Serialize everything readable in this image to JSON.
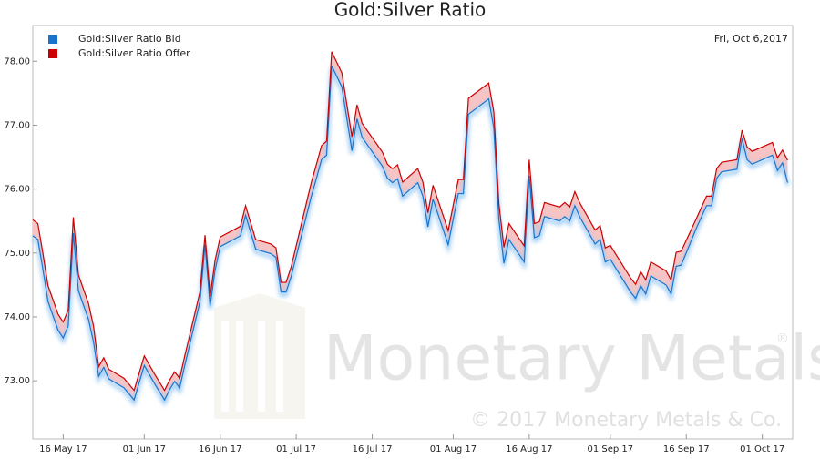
{
  "chart_data": {
    "type": "line",
    "title": "Gold:Silver Ratio",
    "date_label": "Fri, Oct 6,2017",
    "watermark": "Monetary Metals",
    "watermark_mark": "®",
    "copyright": "© 2017 Monetary Metals & Co.",
    "x": [
      "2017-05-10",
      "2017-05-11",
      "2017-05-12",
      "2017-05-13",
      "2017-05-15",
      "2017-05-16",
      "2017-05-17",
      "2017-05-18",
      "2017-05-19",
      "2017-05-21",
      "2017-05-22",
      "2017-05-23",
      "2017-05-24",
      "2017-05-25",
      "2017-05-28",
      "2017-05-30",
      "2017-06-01",
      "2017-06-03",
      "2017-06-05",
      "2017-06-06",
      "2017-06-07",
      "2017-06-08",
      "2017-06-09",
      "2017-06-12",
      "2017-06-13",
      "2017-06-14",
      "2017-06-15",
      "2017-06-16",
      "2017-06-20",
      "2017-06-21",
      "2017-06-23",
      "2017-06-26",
      "2017-06-27",
      "2017-06-28",
      "2017-06-29",
      "2017-06-30",
      "2017-07-04",
      "2017-07-05",
      "2017-07-06",
      "2017-07-07",
      "2017-07-08",
      "2017-07-10",
      "2017-07-11",
      "2017-07-12",
      "2017-07-13",
      "2017-07-14",
      "2017-07-18",
      "2017-07-19",
      "2017-07-20",
      "2017-07-21",
      "2017-07-22",
      "2017-07-25",
      "2017-07-26",
      "2017-07-27",
      "2017-07-28",
      "2017-07-31",
      "2017-08-02",
      "2017-08-03",
      "2017-08-04",
      "2017-08-08",
      "2017-08-09",
      "2017-08-10",
      "2017-08-11",
      "2017-08-12",
      "2017-08-15",
      "2017-08-16",
      "2017-08-17",
      "2017-08-18",
      "2017-08-19",
      "2017-08-22",
      "2017-08-23",
      "2017-08-24",
      "2017-08-25",
      "2017-08-26",
      "2017-08-29",
      "2017-08-30",
      "2017-08-31",
      "2017-09-01",
      "2017-09-05",
      "2017-09-06",
      "2017-09-07",
      "2017-09-08",
      "2017-09-09",
      "2017-09-12",
      "2017-09-13",
      "2017-09-14",
      "2017-09-15",
      "2017-09-18",
      "2017-09-20",
      "2017-09-21",
      "2017-09-22",
      "2017-09-23",
      "2017-09-26",
      "2017-09-27",
      "2017-09-28",
      "2017-09-29",
      "2017-10-03",
      "2017-10-04",
      "2017-10-05",
      "2017-10-06"
    ],
    "series": [
      {
        "name": "Gold:Silver Ratio Bid",
        "color": "#1874cd",
        "values": [
          75.27,
          75.21,
          74.74,
          74.24,
          73.79,
          73.67,
          73.86,
          75.31,
          74.41,
          73.96,
          73.6,
          73.07,
          73.21,
          73.03,
          72.89,
          72.7,
          73.24,
          72.96,
          72.7,
          72.86,
          72.99,
          72.89,
          73.24,
          74.24,
          75.13,
          74.17,
          74.74,
          75.1,
          75.27,
          75.59,
          75.06,
          74.99,
          74.93,
          74.39,
          74.39,
          74.63,
          75.89,
          76.17,
          76.46,
          76.53,
          77.93,
          77.6,
          77.1,
          76.6,
          77.1,
          76.81,
          76.36,
          76.17,
          76.1,
          76.16,
          75.89,
          76.1,
          75.89,
          75.41,
          75.84,
          75.13,
          75.93,
          75.93,
          77.17,
          77.41,
          76.96,
          75.53,
          74.84,
          75.21,
          74.86,
          76.21,
          75.24,
          75.27,
          75.57,
          75.5,
          75.57,
          75.5,
          75.74,
          75.56,
          75.14,
          75.21,
          74.86,
          74.9,
          74.39,
          74.29,
          74.49,
          74.36,
          74.64,
          74.5,
          74.36,
          74.79,
          74.81,
          75.39,
          75.74,
          75.74,
          76.17,
          76.27,
          76.31,
          76.79,
          76.46,
          76.39,
          76.53,
          76.29,
          76.41,
          76.1
        ]
      },
      {
        "name": "Gold:Silver Ratio Offer",
        "color": "#cc0000",
        "values": [
          75.52,
          75.46,
          74.99,
          74.49,
          74.04,
          73.92,
          74.11,
          75.56,
          74.66,
          74.21,
          73.85,
          73.22,
          73.36,
          73.18,
          73.04,
          72.85,
          73.39,
          73.11,
          72.85,
          73.01,
          73.14,
          73.04,
          73.39,
          74.39,
          75.28,
          74.32,
          74.89,
          75.25,
          75.42,
          75.74,
          75.21,
          75.14,
          75.08,
          74.54,
          74.54,
          74.78,
          76.11,
          76.39,
          76.68,
          76.75,
          78.15,
          77.82,
          77.32,
          76.82,
          77.32,
          77.03,
          76.58,
          76.39,
          76.32,
          76.38,
          76.11,
          76.32,
          76.11,
          75.63,
          76.06,
          75.35,
          76.15,
          76.15,
          77.42,
          77.66,
          77.21,
          75.78,
          75.09,
          75.46,
          75.11,
          76.46,
          75.46,
          75.49,
          75.79,
          75.72,
          75.79,
          75.72,
          75.96,
          75.78,
          75.36,
          75.43,
          75.08,
          75.12,
          74.61,
          74.51,
          74.71,
          74.58,
          74.86,
          74.72,
          74.58,
          75.01,
          75.03,
          75.54,
          75.89,
          75.89,
          76.32,
          76.42,
          76.46,
          76.92,
          76.66,
          76.59,
          76.73,
          76.49,
          76.61,
          76.45
        ]
      }
    ],
    "xlim": [
      "2017-05-10",
      "2017-10-07"
    ],
    "xticks": [
      {
        "value": "2017-05-16",
        "label": "16 May 17"
      },
      {
        "value": "2017-06-01",
        "label": "01 Jun 17"
      },
      {
        "value": "2017-06-16",
        "label": "16 Jun 17"
      },
      {
        "value": "2017-07-01",
        "label": "01 Jul 17"
      },
      {
        "value": "2017-07-16",
        "label": "16 Jul 17"
      },
      {
        "value": "2017-08-01",
        "label": "01 Aug 17"
      },
      {
        "value": "2017-08-16",
        "label": "16 Aug 17"
      },
      {
        "value": "2017-09-01",
        "label": "01 Sep 17"
      },
      {
        "value": "2017-09-16",
        "label": "16 Sep 17"
      },
      {
        "value": "2017-10-01",
        "label": "01 Oct 17"
      }
    ],
    "ylim": [
      72.09,
      78.56
    ],
    "yticks": [
      {
        "value": 73,
        "label": "73.00"
      },
      {
        "value": 74,
        "label": "74.00"
      },
      {
        "value": 75,
        "label": "75.00"
      },
      {
        "value": 76,
        "label": "76.00"
      },
      {
        "value": 77,
        "label": "77.00"
      },
      {
        "value": 78,
        "label": "78.00"
      }
    ],
    "legend": "top-left",
    "fill_between": "#f6c4c4"
  }
}
